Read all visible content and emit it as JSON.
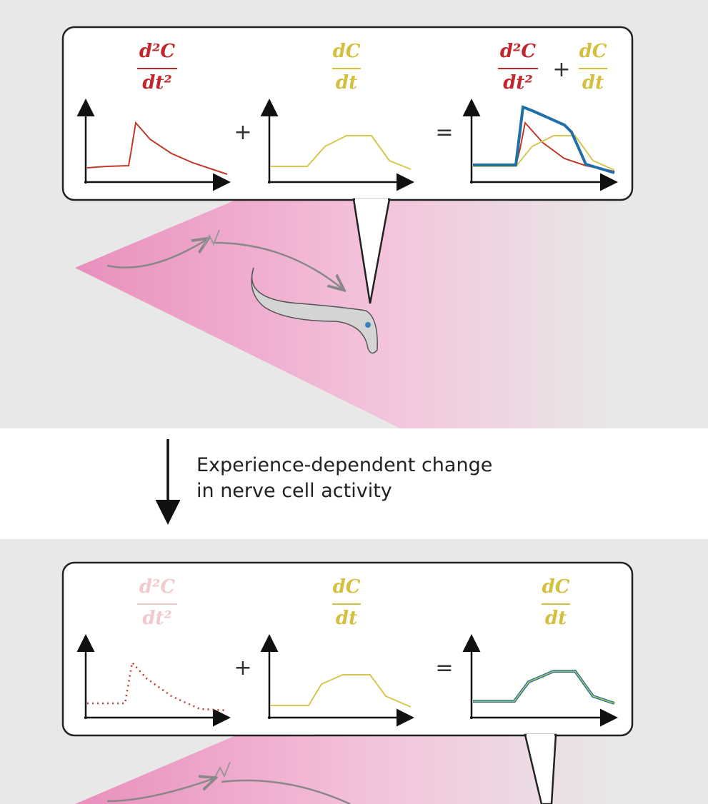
{
  "top_panel": {
    "formulas": [
      {
        "numerator": "d²C",
        "denominator": "dt²"
      },
      {
        "numerator": "dC",
        "denominator": "dt"
      },
      {
        "terms": [
          {
            "numerator": "d²C",
            "denominator": "dt²"
          },
          {
            "numerator": "dC",
            "denominator": "dt"
          }
        ],
        "operator": "+"
      }
    ],
    "operators": [
      "+",
      "="
    ]
  },
  "caption": {
    "lines": [
      "Experience-dependent change",
      "in nerve cell activity"
    ]
  },
  "bottom_panel": {
    "formulas": [
      {
        "numerator": "d²C",
        "denominator": "dt²"
      },
      {
        "numerator": "dC",
        "denominator": "dt"
      },
      {
        "numerator": "dC",
        "denominator": "dt"
      }
    ],
    "operators": [
      "+",
      "="
    ]
  }
}
